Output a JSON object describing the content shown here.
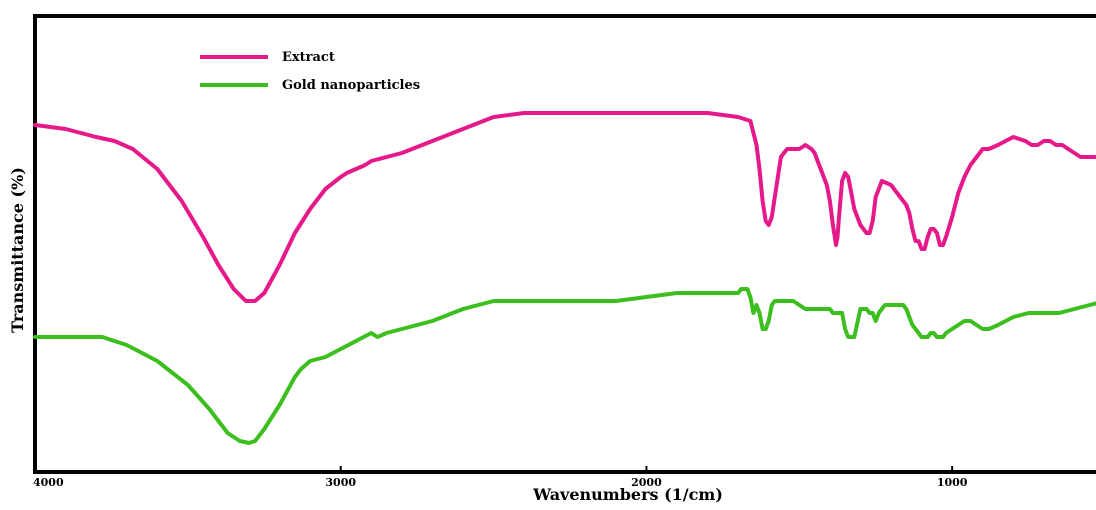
{
  "chart_data": {
    "type": "line",
    "title": "",
    "xlabel": "Wavenumbers (1/cm)",
    "ylabel": "Transmittance (%)",
    "x_axis_reversed": true,
    "xlim": [
      4000,
      500
    ],
    "ylim": [
      0,
      100
    ],
    "x_ticks": [
      4000,
      3000,
      2000,
      1000
    ],
    "x_tick_labels": [
      "4000",
      "3000",
      "2000",
      "1000"
    ],
    "y_ticks_visible": false,
    "grid": false,
    "legend_position": "top-left",
    "series": [
      {
        "name": "Extract",
        "color": "#e6198a",
        "x": [
          4000,
          3900,
          3800,
          3740,
          3680,
          3600,
          3520,
          3450,
          3400,
          3350,
          3310,
          3280,
          3250,
          3200,
          3150,
          3100,
          3050,
          3000,
          2980,
          2950,
          2920,
          2900,
          2850,
          2800,
          2700,
          2600,
          2500,
          2400,
          2300,
          2200,
          2000,
          1800,
          1700,
          1660,
          1640,
          1630,
          1620,
          1610,
          1600,
          1590,
          1580,
          1560,
          1540,
          1520,
          1500,
          1480,
          1460,
          1450,
          1440,
          1430,
          1420,
          1410,
          1400,
          1390,
          1380,
          1375,
          1370,
          1360,
          1350,
          1340,
          1330,
          1320,
          1300,
          1280,
          1270,
          1260,
          1250,
          1240,
          1230,
          1200,
          1180,
          1160,
          1150,
          1140,
          1130,
          1120,
          1110,
          1100,
          1090,
          1080,
          1070,
          1060,
          1050,
          1040,
          1030,
          1020,
          1000,
          980,
          960,
          940,
          920,
          900,
          880,
          850,
          800,
          760,
          740,
          720,
          700,
          680,
          660,
          640,
          620,
          600,
          580,
          560,
          540,
          520,
          500
        ],
        "y": [
          85,
          84,
          82,
          81,
          79,
          74,
          66,
          57,
          50,
          44,
          41,
          41,
          43,
          50,
          58,
          64,
          69,
          72,
          73,
          74,
          75,
          76,
          77,
          78,
          81,
          84,
          87,
          88,
          88,
          88,
          88,
          88,
          87,
          86,
          80,
          74,
          66,
          61,
          60,
          62,
          67,
          77,
          79,
          79,
          79,
          80,
          79,
          78,
          76,
          74,
          72,
          70,
          66,
          60,
          55,
          57,
          62,
          71,
          73,
          72,
          68,
          64,
          60,
          58,
          58,
          61,
          67,
          69,
          71,
          70,
          68,
          66,
          65,
          63,
          59,
          56,
          56,
          54,
          54,
          57,
          59,
          59,
          58,
          55,
          55,
          57,
          62,
          68,
          72,
          75,
          77,
          79,
          79,
          80,
          82,
          81,
          80,
          80,
          81,
          81,
          80,
          80,
          79,
          78,
          77,
          77,
          77,
          77,
          77
        ]
      },
      {
        "name": "Gold nanoparticles",
        "color": "#3cbf1e",
        "x": [
          4000,
          3850,
          3780,
          3700,
          3600,
          3500,
          3430,
          3370,
          3330,
          3300,
          3280,
          3250,
          3200,
          3150,
          3130,
          3100,
          3050,
          3000,
          2950,
          2900,
          2880,
          2850,
          2800,
          2700,
          2600,
          2500,
          2400,
          2300,
          2200,
          2100,
          2000,
          1900,
          1800,
          1700,
          1690,
          1680,
          1670,
          1660,
          1650,
          1640,
          1630,
          1620,
          1610,
          1600,
          1590,
          1580,
          1560,
          1540,
          1520,
          1500,
          1480,
          1460,
          1440,
          1420,
          1400,
          1390,
          1380,
          1370,
          1360,
          1350,
          1340,
          1330,
          1320,
          1300,
          1280,
          1270,
          1260,
          1250,
          1240,
          1230,
          1220,
          1200,
          1180,
          1160,
          1150,
          1140,
          1130,
          1120,
          1100,
          1080,
          1070,
          1060,
          1050,
          1040,
          1030,
          1020,
          1000,
          980,
          960,
          940,
          920,
          900,
          880,
          850,
          800,
          750,
          700,
          650,
          600,
          550,
          500
        ],
        "y": [
          32,
          32,
          32,
          30,
          26,
          20,
          14,
          8,
          6,
          5.5,
          6,
          9,
          15,
          22,
          24,
          26,
          27,
          29,
          31,
          33,
          32,
          33,
          34,
          36,
          39,
          41,
          41,
          41,
          41,
          41,
          42,
          43,
          43,
          43,
          44,
          44,
          44,
          42,
          38,
          40,
          38,
          34,
          34,
          36,
          40,
          41,
          41,
          41,
          41,
          40,
          39,
          39,
          39,
          39,
          39,
          38,
          38,
          38,
          38,
          34,
          32,
          32,
          32,
          39,
          39,
          38,
          38,
          36,
          38,
          39,
          40,
          40,
          40,
          40,
          39,
          37,
          35,
          34,
          32,
          32,
          33,
          33,
          32,
          32,
          32,
          33,
          34,
          35,
          36,
          36,
          35,
          34,
          34,
          35,
          37,
          38,
          38,
          38,
          39,
          40,
          41
        ]
      }
    ]
  }
}
